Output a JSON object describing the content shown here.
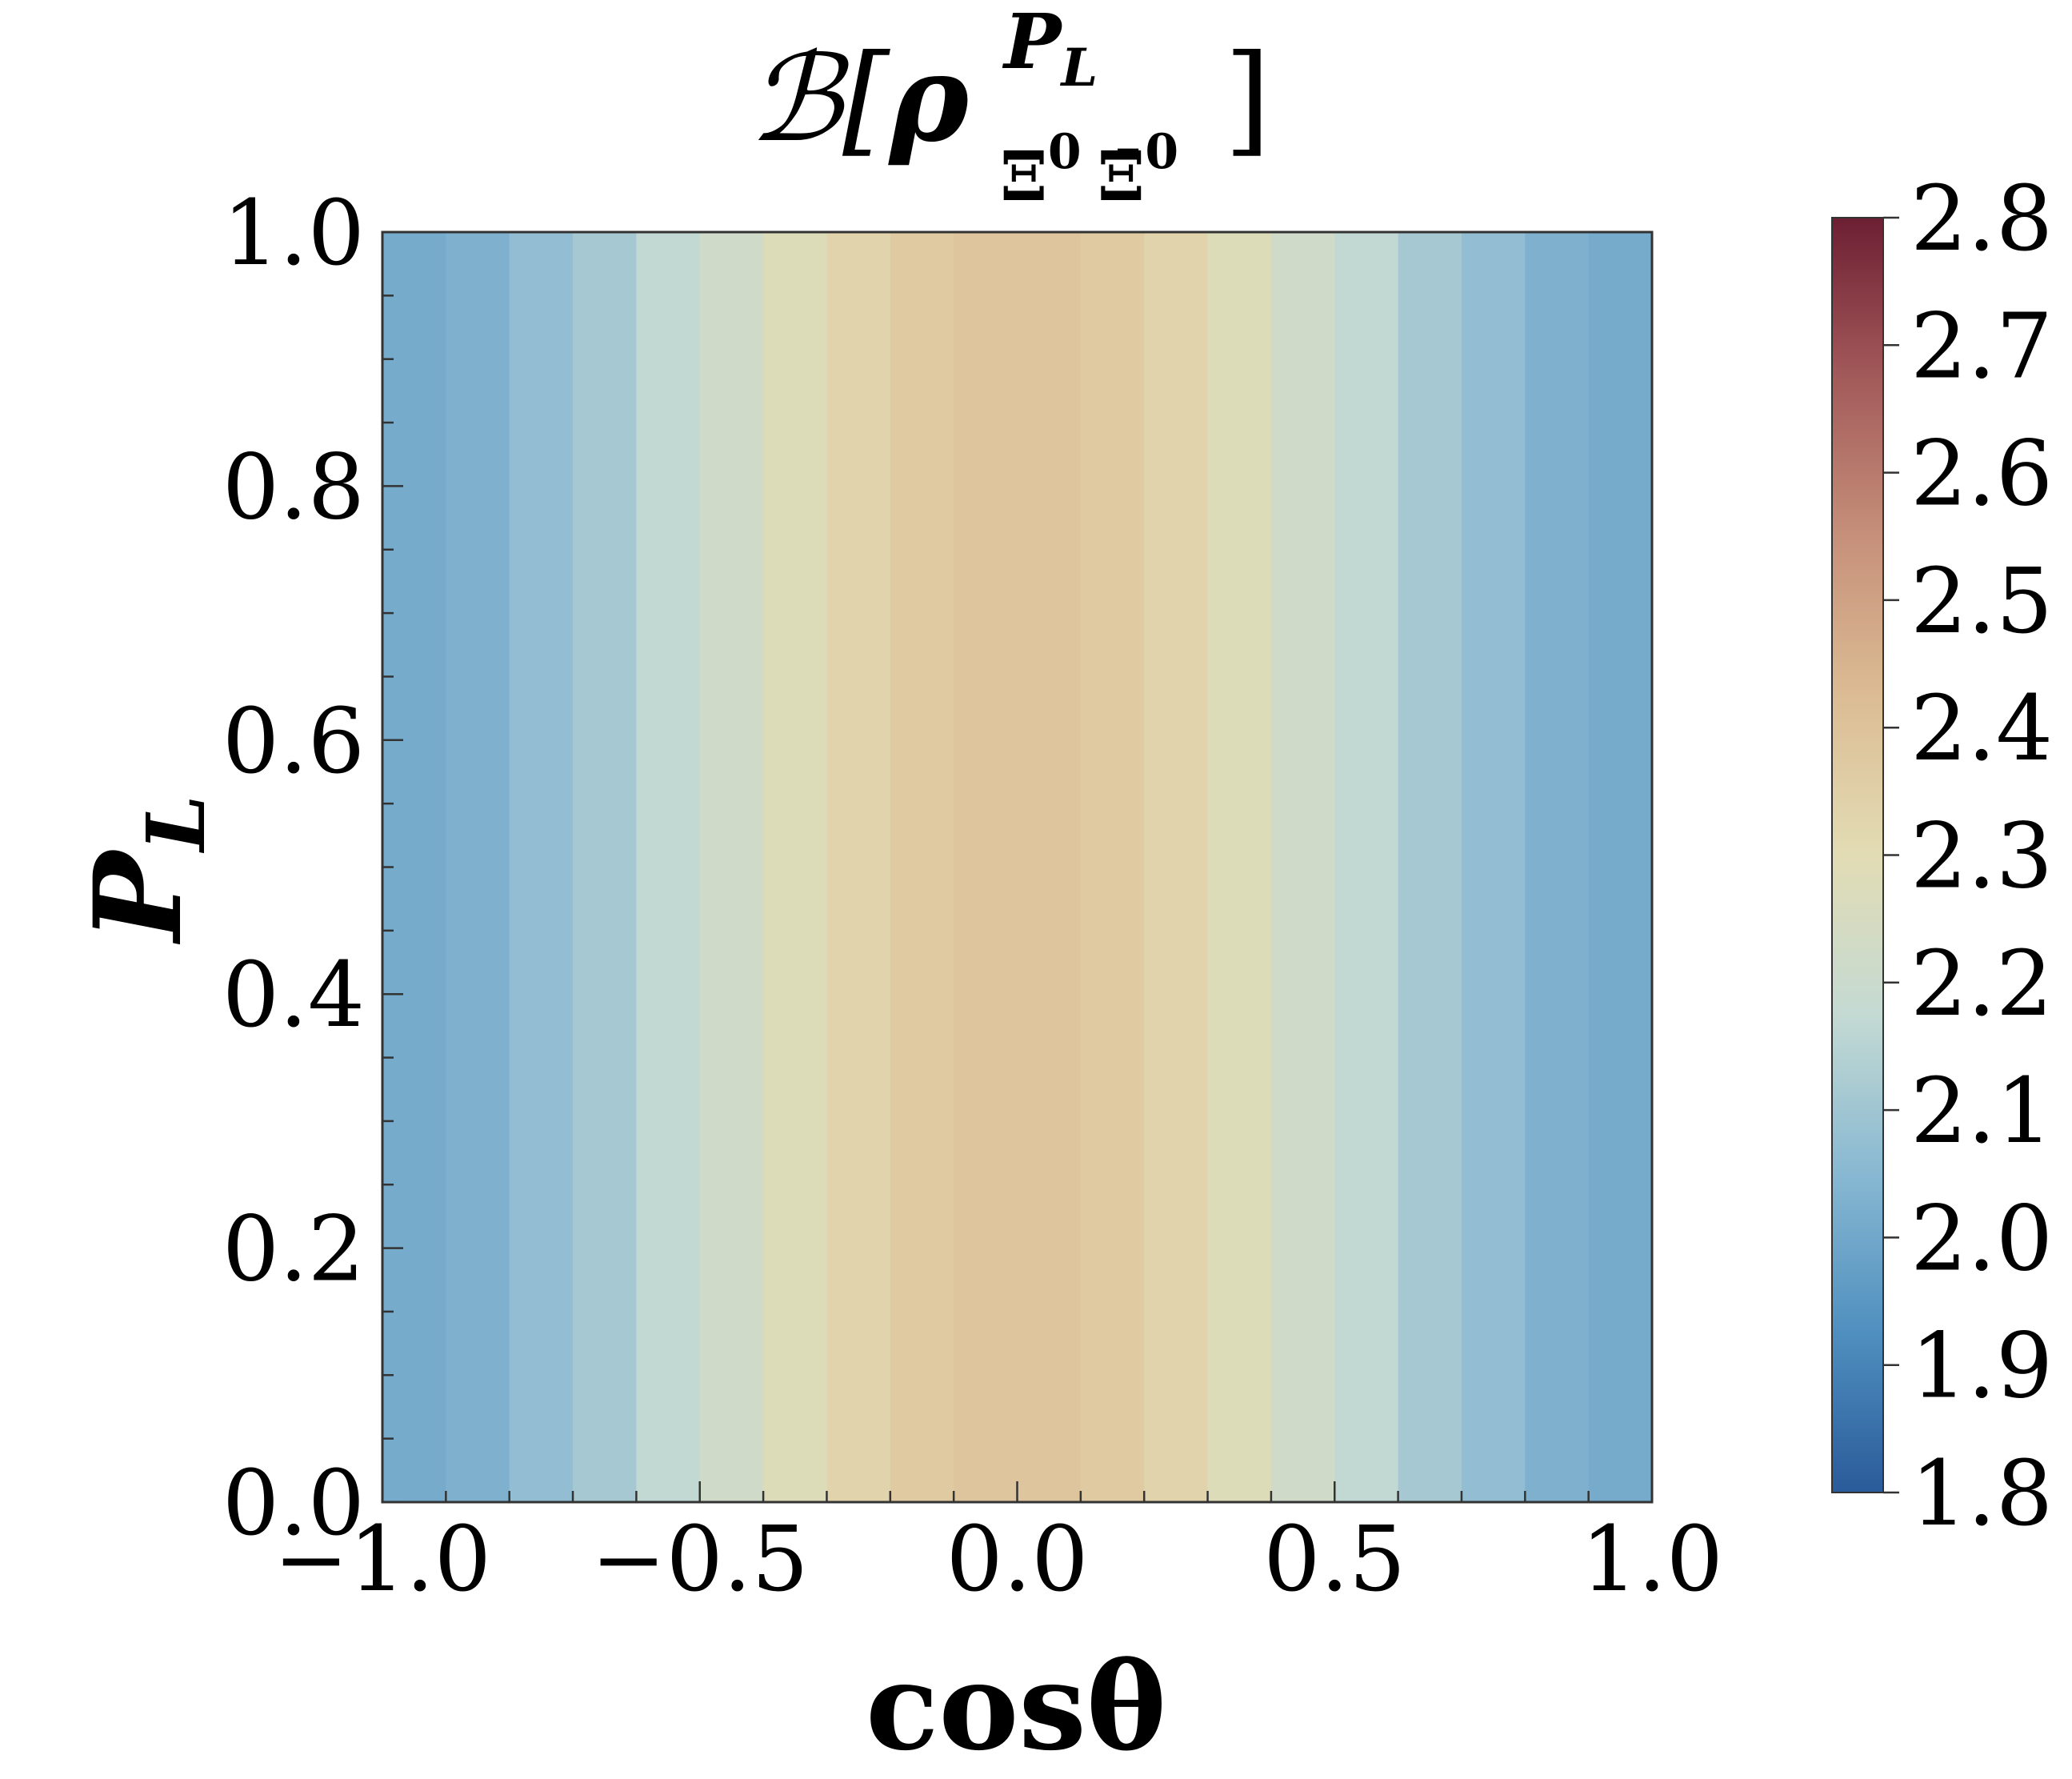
{
  "chart_data": {
    "type": "heatmap",
    "title": {
      "prefix": "ℬ[",
      "symbol": "ρ",
      "superscript": "P",
      "superscript_sub": "L",
      "subscript_1": "Ξ",
      "subscript_1_sup": "0",
      "subscript_2": "Ξ̄",
      "subscript_2_sup": "0",
      "suffix": "]"
    },
    "xlabel": "cosθ",
    "ylabel": "P",
    "ylabel_sub": "L",
    "xlim": [
      -1.0,
      1.0
    ],
    "ylim": [
      0.0,
      1.0
    ],
    "x_ticks": [
      "−1.0",
      "−0.5",
      "0.0",
      "0.5",
      "1.0"
    ],
    "x_tick_values": [
      -1.0,
      -0.5,
      0.0,
      0.5,
      1.0
    ],
    "y_ticks": [
      "0.0",
      "0.2",
      "0.4",
      "0.6",
      "0.8",
      "1.0"
    ],
    "y_tick_values": [
      0.0,
      0.2,
      0.4,
      0.6,
      0.8,
      1.0
    ],
    "colorbar": {
      "range": [
        1.8,
        2.8
      ],
      "ticks": [
        "1.8",
        "1.9",
        "2.0",
        "2.1",
        "2.2",
        "2.3",
        "2.4",
        "2.5",
        "2.6",
        "2.7",
        "2.8"
      ],
      "tick_values": [
        1.8,
        1.9,
        2.0,
        2.1,
        2.2,
        2.3,
        2.4,
        2.5,
        2.6,
        2.7,
        2.8
      ],
      "colormap": [
        "#2a5b9a",
        "#4f8fbf",
        "#88b8d2",
        "#c4dad3",
        "#e2dcb4",
        "#dcbc94",
        "#c6907a",
        "#a35a5a",
        "#6c1f33"
      ]
    },
    "columns": {
      "cos_theta": [
        -0.95,
        -0.85,
        -0.75,
        -0.65,
        -0.55,
        -0.45,
        -0.35,
        -0.25,
        -0.15,
        -0.05,
        0.05,
        0.15,
        0.25,
        0.35,
        0.45,
        0.55,
        0.65,
        0.75,
        0.85,
        0.95
      ],
      "value": [
        2.01,
        2.03,
        2.07,
        2.11,
        2.17,
        2.22,
        2.28,
        2.33,
        2.37,
        2.39,
        2.39,
        2.37,
        2.33,
        2.28,
        2.22,
        2.17,
        2.11,
        2.07,
        2.03,
        2.01
      ]
    },
    "note_uniform_in_y": true
  }
}
